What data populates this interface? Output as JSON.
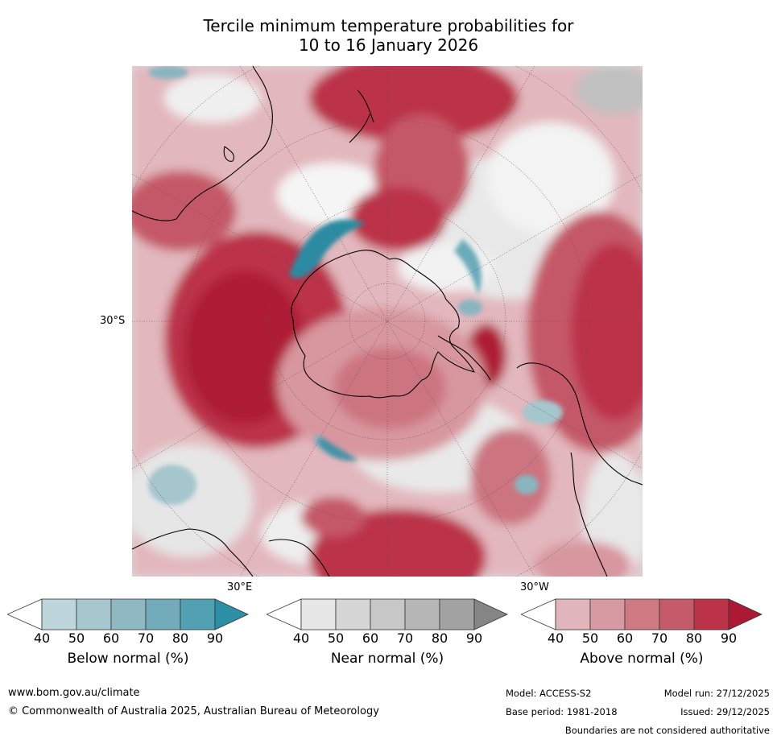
{
  "title": {
    "line1": "Tercile minimum temperature probabilities for",
    "line2": "10 to 16 January 2026"
  },
  "map": {
    "labels": {
      "lat_30s": "30°S",
      "lon_30e": "30°E",
      "lon_30w": "30°W"
    },
    "colors": {
      "above": [
        "#e0b5bb",
        "#d8979f",
        "#cc7580",
        "#c55868",
        "#bb3149",
        "#ad1b35"
      ],
      "near": [
        "#e4e4e4",
        "#d6d6d6",
        "#c6c6c6",
        "#b3b3b3",
        "#a1a1a1",
        "#858585"
      ],
      "below": [
        "#bfd8de",
        "#a5c6cd",
        "#88b5c0",
        "#6aabb9",
        "#4b9eb0",
        "#2c8ba2"
      ],
      "coast": "#000000"
    }
  },
  "legends": [
    {
      "label": "Below normal (%)",
      "ticks": [
        "40",
        "50",
        "60",
        "70",
        "80",
        "90"
      ],
      "colors": [
        "#ffffff",
        "#bfd5dc",
        "#a7c7ce",
        "#8fb8c3",
        "#72acba",
        "#52a1b3",
        "#2d8fa5"
      ]
    },
    {
      "label": "Near normal (%)",
      "ticks": [
        "40",
        "50",
        "60",
        "70",
        "80",
        "90"
      ],
      "colors": [
        "#ffffff",
        "#e6e6e6",
        "#d6d6d6",
        "#c7c7c7",
        "#b6b6b6",
        "#a3a3a3",
        "#858585"
      ]
    },
    {
      "label": "Above normal (%)",
      "ticks": [
        "40",
        "50",
        "60",
        "70",
        "80",
        "90"
      ],
      "colors": [
        "#ffffff",
        "#e1b5bc",
        "#d89aa2",
        "#cf7a83",
        "#c55b69",
        "#bb3249",
        "#ac1935"
      ]
    }
  ],
  "footer": {
    "website": "www.bom.gov.au/climate",
    "copyright": "© Commonwealth of Australia 2025, Australian Bureau of Meteorology",
    "model": "Model: ACCESS-S2",
    "model_run": "Model run: 27/12/2025",
    "base_period": "Base period: 1981-2018",
    "issued": "Issued: 29/12/2025",
    "disclaimer": "Boundaries are not considered authoritative"
  }
}
